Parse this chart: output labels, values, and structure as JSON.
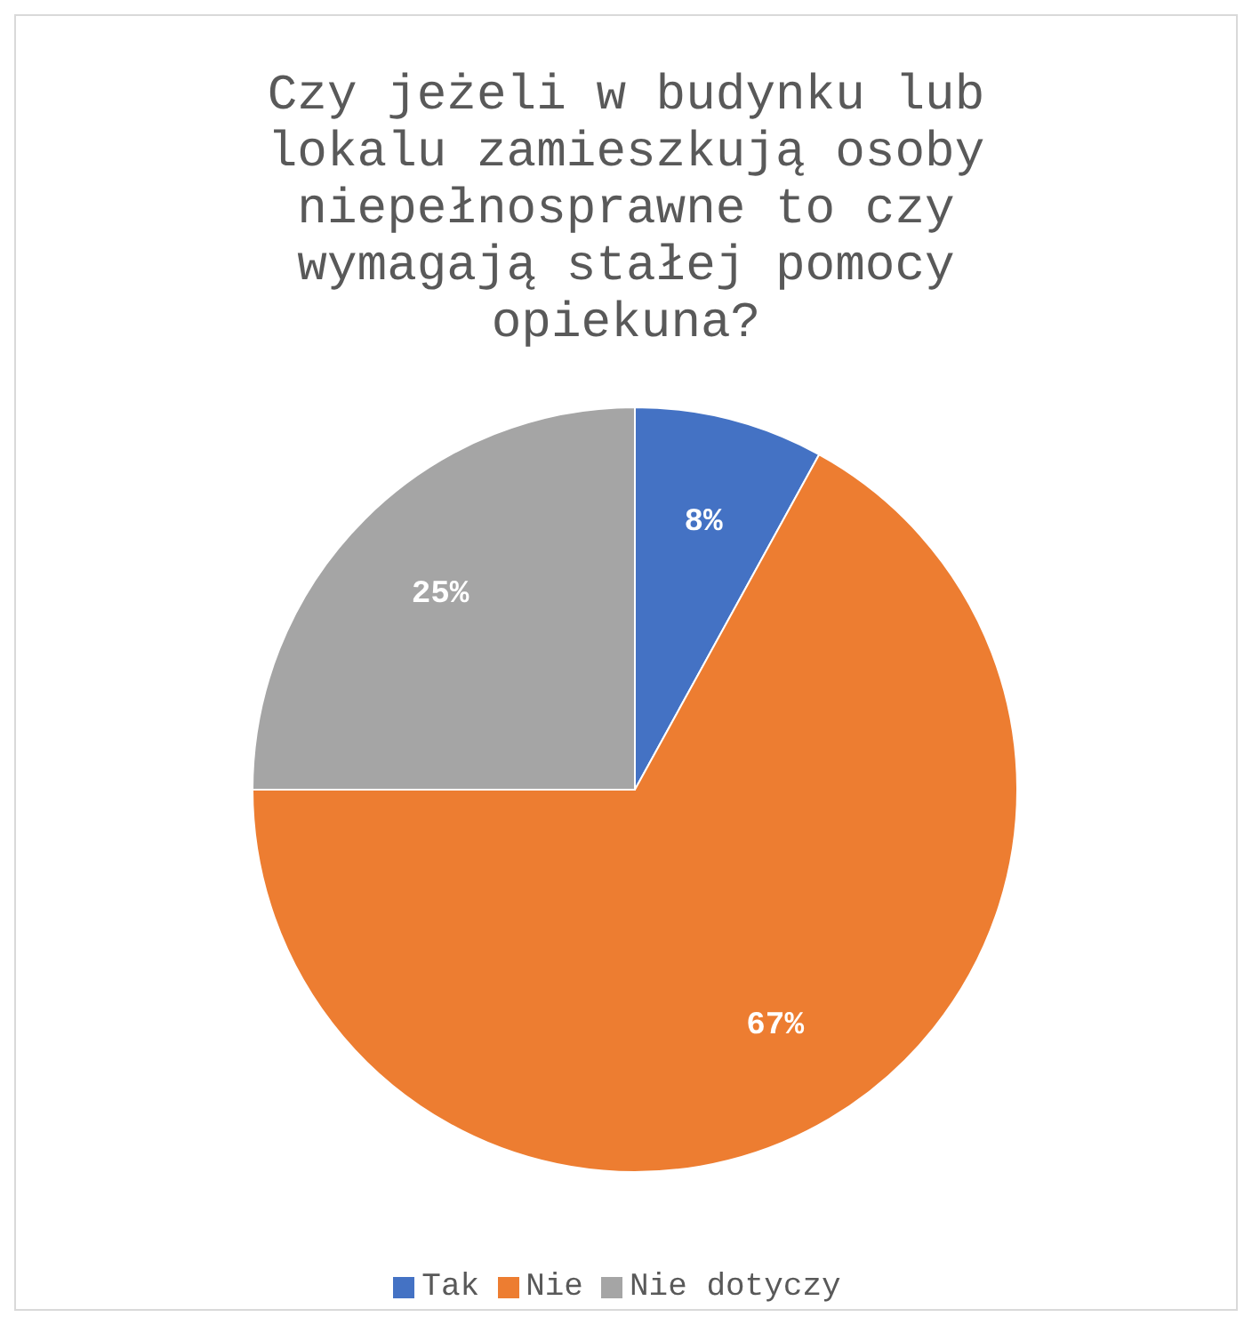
{
  "chart_data": {
    "type": "pie",
    "title": "Czy jeżeli w budynku lub lokalu zamieszkują osoby niepełnosprawne to czy wymagają stałej pomocy opiekuna?",
    "categories": [
      "Tak",
      "Nie",
      "Nie dotyczy"
    ],
    "values": [
      8,
      67,
      25
    ],
    "colors": [
      "#4472c4",
      "#ed7d31",
      "#a5a5a5"
    ],
    "value_labels": [
      "8%",
      "67%",
      "25%"
    ],
    "legend": "bottom"
  }
}
